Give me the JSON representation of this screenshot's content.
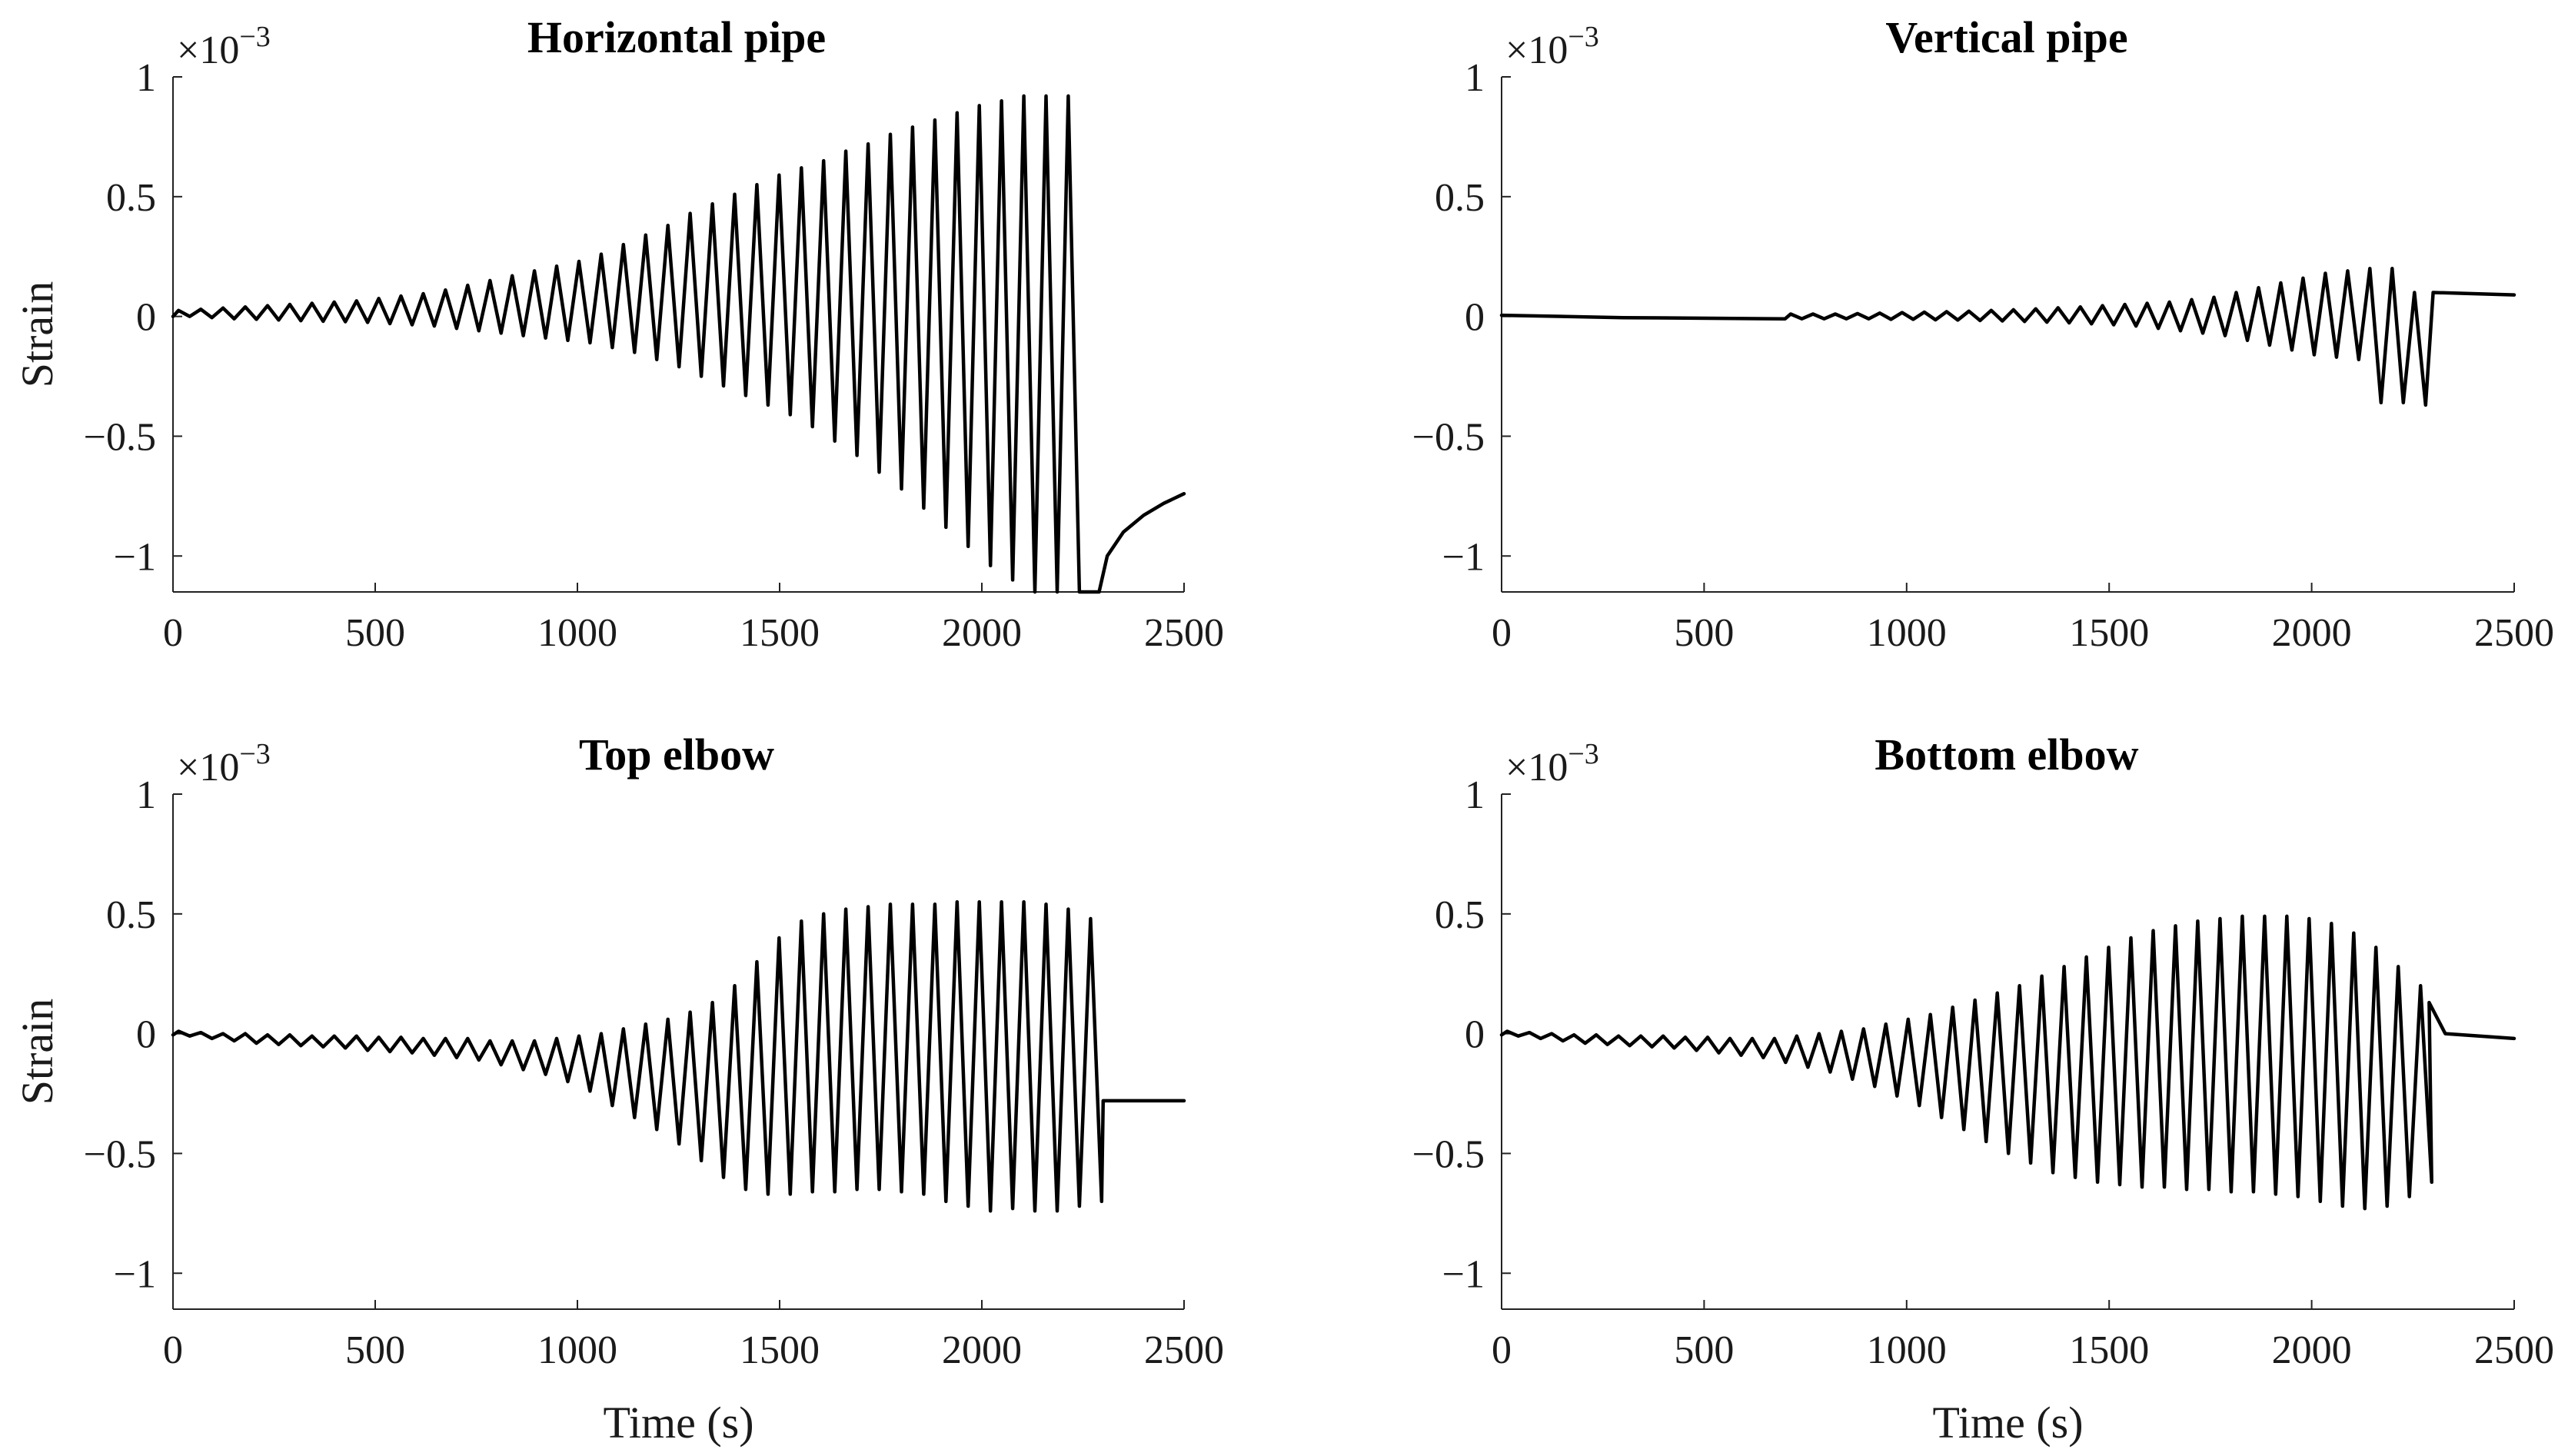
{
  "colors": {
    "line": "#000000",
    "axis": "#222222",
    "text": "#1a1a1a"
  },
  "chart_data": [
    {
      "type": "line",
      "title": "Horizontal pipe",
      "xlabel": "",
      "ylabel": "Strain",
      "scale_label": "×10",
      "scale_exponent": "−3",
      "xlim": [
        0,
        2500
      ],
      "ylim": [
        -1.15,
        1
      ],
      "xticks": [
        "0",
        "500",
        "1000",
        "1500",
        "2000",
        "2500"
      ],
      "yticks": [
        "−1",
        "−0.5",
        "0",
        "0.5",
        "1"
      ],
      "signal": {
        "start": 0,
        "period": 55,
        "cycles": 41,
        "phase_up": 0.5,
        "peaks": [
          0.025,
          0.03,
          0.035,
          0.04,
          0.045,
          0.05,
          0.055,
          0.06,
          0.065,
          0.075,
          0.085,
          0.095,
          0.11,
          0.13,
          0.15,
          0.17,
          0.19,
          0.21,
          0.23,
          0.26,
          0.3,
          0.34,
          0.38,
          0.43,
          0.47,
          0.51,
          0.55,
          0.59,
          0.62,
          0.65,
          0.69,
          0.72,
          0.76,
          0.79,
          0.82,
          0.85,
          0.88,
          0.9,
          0.92,
          0.92,
          0.92
        ],
        "troughs": [
          0.0,
          -0.005,
          -0.01,
          -0.012,
          -0.015,
          -0.018,
          -0.02,
          -0.022,
          -0.025,
          -0.03,
          -0.035,
          -0.04,
          -0.05,
          -0.06,
          -0.07,
          -0.08,
          -0.09,
          -0.1,
          -0.11,
          -0.13,
          -0.15,
          -0.18,
          -0.21,
          -0.25,
          -0.29,
          -0.33,
          -0.37,
          -0.41,
          -0.46,
          -0.52,
          -0.58,
          -0.65,
          -0.72,
          -0.8,
          -0.88,
          -0.96,
          -1.04,
          -1.1,
          -1.15,
          -1.15,
          -1.15
        ],
        "tail": [
          [
            2290,
            -1.15
          ],
          [
            2310,
            -1.0
          ],
          [
            2350,
            -0.9
          ],
          [
            2400,
            -0.83
          ],
          [
            2450,
            -0.78
          ],
          [
            2500,
            -0.74
          ]
        ]
      }
    },
    {
      "type": "line",
      "title": "Vertical pipe",
      "xlabel": "",
      "ylabel": "",
      "scale_label": "×10",
      "scale_exponent": "−3",
      "xlim": [
        0,
        2500
      ],
      "ylim": [
        -1.15,
        1
      ],
      "xticks": [
        "0",
        "500",
        "1000",
        "1500",
        "2000",
        "2500"
      ],
      "yticks": [
        "−1",
        "−0.5",
        "0",
        "0.5",
        "1"
      ],
      "signal": {
        "start": 700,
        "period": 55,
        "cycles": 29,
        "phase_up": 0.5,
        "peaks": [
          0.01,
          0.01,
          0.01,
          0.012,
          0.014,
          0.016,
          0.018,
          0.02,
          0.022,
          0.025,
          0.028,
          0.032,
          0.036,
          0.04,
          0.045,
          0.05,
          0.055,
          0.06,
          0.07,
          0.08,
          0.1,
          0.12,
          0.14,
          0.16,
          0.18,
          0.19,
          0.2,
          0.2,
          0.1
        ],
        "troughs": [
          -0.01,
          -0.01,
          -0.01,
          -0.01,
          -0.012,
          -0.012,
          -0.014,
          -0.015,
          -0.017,
          -0.019,
          -0.021,
          -0.024,
          -0.027,
          -0.031,
          -0.035,
          -0.04,
          -0.05,
          -0.06,
          -0.07,
          -0.08,
          -0.1,
          -0.12,
          -0.14,
          -0.16,
          -0.17,
          -0.18,
          -0.36,
          -0.36,
          -0.37
        ],
        "lead": [
          [
            0,
            0.005
          ],
          [
            300,
            -0.005
          ],
          [
            700,
            -0.01
          ]
        ],
        "tail": [
          [
            2300,
            0.1
          ],
          [
            2500,
            0.09
          ]
        ]
      }
    },
    {
      "type": "line",
      "title": "Top elbow",
      "xlabel": "Time (s)",
      "ylabel": "Strain",
      "scale_label": "×10",
      "scale_exponent": "−3",
      "xlim": [
        0,
        2500
      ],
      "ylim": [
        -1.15,
        1
      ],
      "xticks": [
        "0",
        "500",
        "1000",
        "1500",
        "2000",
        "2500"
      ],
      "yticks": [
        "−1",
        "−0.5",
        "0",
        "0.5",
        "1"
      ],
      "signal": {
        "start": 0,
        "period": 55,
        "cycles": 42,
        "phase_up": 0.5,
        "peaks": [
          0.01,
          0.005,
          0.0,
          0.0,
          -0.005,
          -0.005,
          -0.01,
          -0.01,
          -0.01,
          -0.015,
          -0.015,
          -0.02,
          -0.02,
          -0.02,
          -0.03,
          -0.03,
          -0.03,
          -0.02,
          -0.01,
          0.0,
          0.02,
          0.04,
          0.06,
          0.09,
          0.13,
          0.2,
          0.3,
          0.4,
          0.47,
          0.5,
          0.52,
          0.53,
          0.54,
          0.54,
          0.54,
          0.55,
          0.55,
          0.55,
          0.55,
          0.54,
          0.52,
          0.48
        ],
        "troughs": [
          -0.01,
          -0.02,
          -0.03,
          -0.04,
          -0.045,
          -0.05,
          -0.055,
          -0.06,
          -0.07,
          -0.075,
          -0.08,
          -0.09,
          -0.1,
          -0.11,
          -0.13,
          -0.15,
          -0.17,
          -0.2,
          -0.24,
          -0.3,
          -0.35,
          -0.4,
          -0.46,
          -0.53,
          -0.6,
          -0.65,
          -0.67,
          -0.67,
          -0.66,
          -0.66,
          -0.65,
          -0.65,
          -0.66,
          -0.67,
          -0.7,
          -0.72,
          -0.74,
          -0.73,
          -0.74,
          -0.74,
          -0.72,
          -0.7
        ],
        "tail": [
          [
            2300,
            -0.28
          ],
          [
            2500,
            -0.28
          ]
        ]
      }
    },
    {
      "type": "line",
      "title": "Bottom elbow",
      "xlabel": "Time (s)",
      "ylabel": "",
      "scale_label": "×10",
      "scale_exponent": "−3",
      "xlim": [
        0,
        2500
      ],
      "ylim": [
        -1.15,
        1
      ],
      "xticks": [
        "0",
        "500",
        "1000",
        "1500",
        "2000",
        "2500"
      ],
      "yticks": [
        "−1",
        "−0.5",
        "0",
        "0.5",
        "1"
      ],
      "signal": {
        "start": 0,
        "period": 55,
        "cycles": 42,
        "phase_up": 0.5,
        "peaks": [
          0.01,
          0.005,
          0.0,
          -0.005,
          -0.005,
          -0.01,
          -0.01,
          -0.01,
          -0.015,
          -0.015,
          -0.02,
          -0.02,
          -0.02,
          -0.01,
          0.0,
          0.01,
          0.02,
          0.04,
          0.06,
          0.08,
          0.11,
          0.14,
          0.17,
          0.2,
          0.24,
          0.28,
          0.32,
          0.36,
          0.4,
          0.43,
          0.45,
          0.47,
          0.48,
          0.49,
          0.49,
          0.49,
          0.48,
          0.46,
          0.42,
          0.36,
          0.28,
          0.2
        ],
        "troughs": [
          -0.01,
          -0.02,
          -0.03,
          -0.04,
          -0.045,
          -0.05,
          -0.055,
          -0.06,
          -0.07,
          -0.08,
          -0.09,
          -0.1,
          -0.12,
          -0.14,
          -0.16,
          -0.19,
          -0.22,
          -0.26,
          -0.3,
          -0.35,
          -0.4,
          -0.45,
          -0.5,
          -0.54,
          -0.58,
          -0.6,
          -0.62,
          -0.63,
          -0.64,
          -0.64,
          -0.65,
          -0.65,
          -0.66,
          -0.66,
          -0.67,
          -0.68,
          -0.7,
          -0.72,
          -0.73,
          -0.72,
          -0.68,
          -0.62
        ],
        "tail": [
          [
            2290,
            0.13
          ],
          [
            2330,
            0.0
          ],
          [
            2500,
            -0.02
          ]
        ]
      }
    }
  ]
}
